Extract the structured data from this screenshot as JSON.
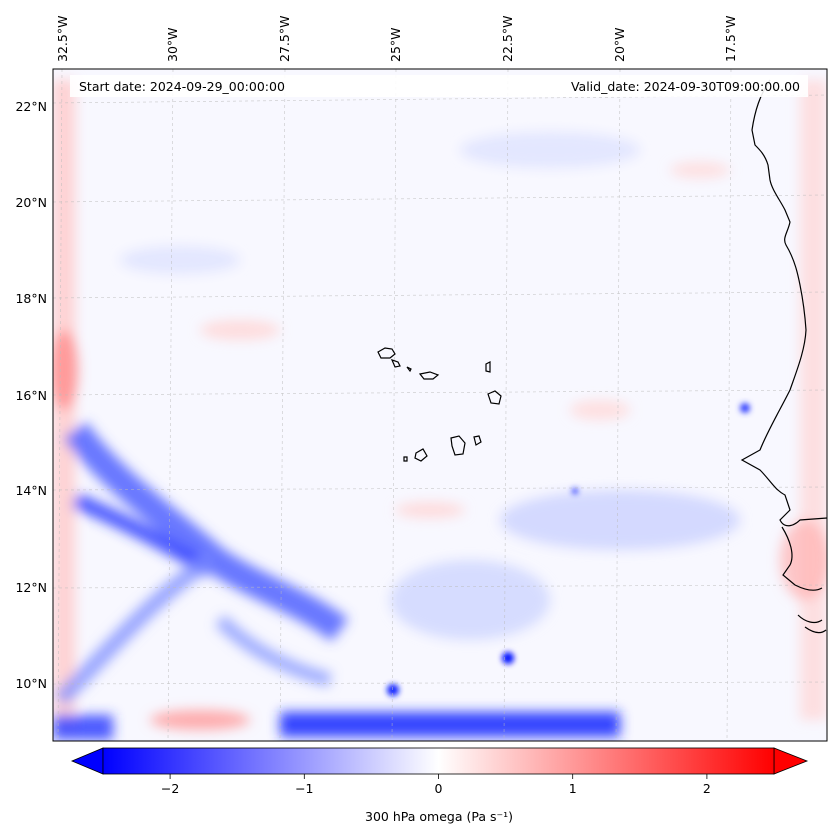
{
  "map": {
    "start_date": "Start date: 2024-09-29_00:00:00",
    "valid_date": "Valid_date: 2024-09-30T09:00:00.00",
    "lon_labels": [
      "32.5°W",
      "30°W",
      "27.5°W",
      "25°W",
      "22.5°W",
      "20°W",
      "17.5°W"
    ],
    "lat_labels": [
      "22°N",
      "20°N",
      "18°N",
      "16°N",
      "14°N",
      "12°N",
      "10°N"
    ],
    "colors": {
      "negative": "#0000ff",
      "positive": "#ff0000",
      "neutral": "#f8f8ff",
      "coastline": "#000000",
      "grid": "#cccccc"
    }
  },
  "colorbar": {
    "label": "300 hPa omega (Pa s⁻¹)",
    "ticks": [
      "−2",
      "−1",
      "0",
      "1",
      "2"
    ],
    "tick_values": [
      -2,
      -1,
      0,
      1,
      2
    ],
    "range": [
      -2.5,
      2.5
    ]
  }
}
